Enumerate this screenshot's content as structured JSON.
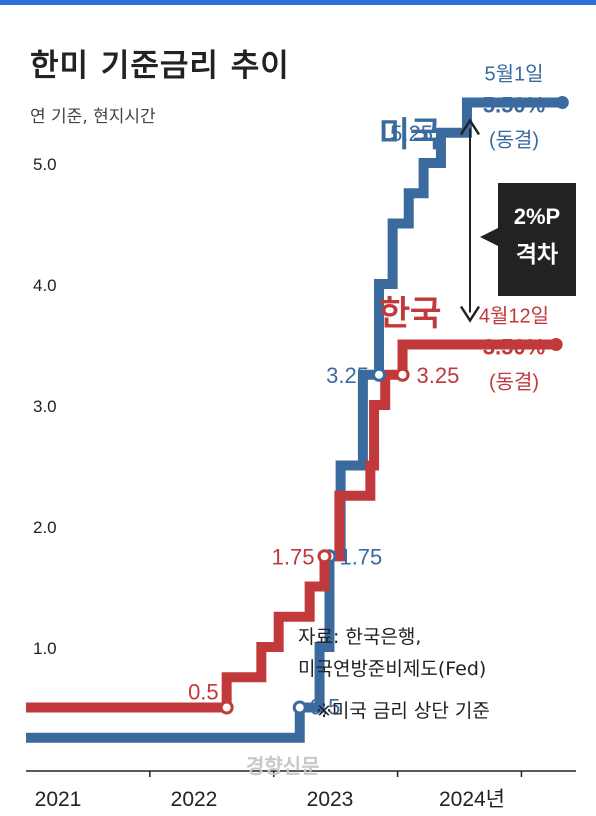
{
  "header": {
    "title": "한미 기준금리 추이",
    "subtitle": "연 기준, 현지시간"
  },
  "source": {
    "line1": "자료: 한국은행,",
    "line2": "미국연방준비제도(Fed)",
    "line3": "※미국 금리 상단 기준"
  },
  "watermark": "경향신문",
  "colors": {
    "us": "#3a6a9e",
    "korea": "#c1393a",
    "axis": "#222222",
    "topbar": "#2f6fd6",
    "gap_box": "#222222"
  },
  "chart_data": {
    "type": "line",
    "step": true,
    "x_unit": "year",
    "xlim": [
      2020.0,
      2024.4
    ],
    "ylim": [
      0,
      5.5
    ],
    "ytick_labels": [
      "1.0",
      "2.0",
      "3.0",
      "4.0",
      "5.0"
    ],
    "xtick_labels": [
      "2021",
      "2022",
      "2023",
      "2024년"
    ],
    "series": [
      {
        "name": "미국",
        "color": "#3a6a9e",
        "x": [
          2020.0,
          2022.21,
          2022.37,
          2022.45,
          2022.54,
          2022.72,
          2022.85,
          2022.96,
          2023.09,
          2023.21,
          2023.35,
          2023.56,
          2024.33
        ],
        "y": [
          0.25,
          0.5,
          1.0,
          1.75,
          2.5,
          3.25,
          4.0,
          4.5,
          4.75,
          5.0,
          5.25,
          5.5,
          5.5
        ]
      },
      {
        "name": "한국",
        "color": "#c1393a",
        "x": [
          2020.0,
          2021.62,
          2021.9,
          2022.04,
          2022.29,
          2022.41,
          2022.53,
          2022.78,
          2022.81,
          2022.9,
          2023.04,
          2024.28
        ],
        "y": [
          0.5,
          0.75,
          1.0,
          1.25,
          1.5,
          1.75,
          2.25,
          2.5,
          3.0,
          3.25,
          3.5,
          3.5
        ]
      }
    ],
    "point_labels": [
      {
        "series": "미국",
        "x": 2022.21,
        "y": 0.5,
        "text": "0.5"
      },
      {
        "series": "미국",
        "x": 2022.45,
        "y": 1.75,
        "text": "1.75"
      },
      {
        "series": "미국",
        "x": 2022.85,
        "y": 3.25,
        "text": "3.25"
      },
      {
        "series": "미국",
        "x": 2023.35,
        "y": 5.25,
        "text": "5.25"
      },
      {
        "series": "한국",
        "x": 2021.62,
        "y": 0.5,
        "text": "0.5"
      },
      {
        "series": "한국",
        "x": 2022.41,
        "y": 1.75,
        "text": "1.75"
      },
      {
        "series": "한국",
        "x": 2023.04,
        "y": 3.25,
        "text": "3.25"
      }
    ],
    "end_annotations": [
      {
        "series": "미국",
        "date": "5월1일",
        "value": "5.50%",
        "status": "(동결)"
      },
      {
        "series": "한국",
        "date": "4월12일",
        "value": "3.50%",
        "status": "(동결)"
      }
    ],
    "series_labels": [
      {
        "series": "미국",
        "text": "미국"
      },
      {
        "series": "한국",
        "text": "한국"
      }
    ],
    "gap": {
      "text_line1": "2%P",
      "text_line2": "격차"
    }
  }
}
